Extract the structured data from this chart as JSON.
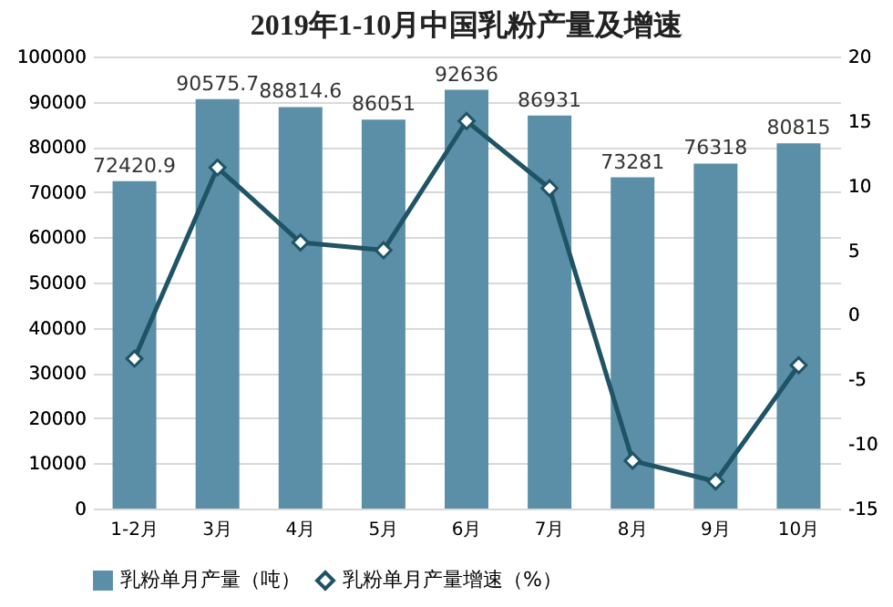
{
  "chart_data": {
    "type": "bar",
    "title": "2019年1-10月中国乳粉产量及增速",
    "categories": [
      "1-2月",
      "3月",
      "4月",
      "5月",
      "6月",
      "7月",
      "8月",
      "9月",
      "10月"
    ],
    "series": [
      {
        "name": "乳粉单月产量（吨）",
        "color": "#5b8fa8",
        "values": [
          72420.9,
          90575.7,
          88814.6,
          86051,
          92636,
          86931,
          73281,
          76318,
          80815
        ],
        "value_labels": [
          "72420.9",
          "90575.7",
          "88814.6",
          "86051",
          "92636",
          "86931",
          "73281",
          "76318",
          "80815"
        ]
      },
      {
        "name": "乳粉单月产量增速（%）",
        "type": "line",
        "axis": "y2",
        "color": "#1f5466",
        "marker": "diamond",
        "values": [
          -3.4,
          11.4,
          5.6,
          5.0,
          15.0,
          9.8,
          -11.3,
          -12.9,
          -3.9
        ]
      }
    ],
    "ylim": [
      0,
      100000
    ],
    "yticks": [
      0,
      10000,
      20000,
      30000,
      40000,
      50000,
      60000,
      70000,
      80000,
      90000,
      100000
    ],
    "y2lim": [
      -15,
      20
    ],
    "y2ticks": [
      -15,
      -10,
      -5,
      0,
      5,
      10,
      15,
      20
    ],
    "grid": "y",
    "legend": "bottom"
  }
}
